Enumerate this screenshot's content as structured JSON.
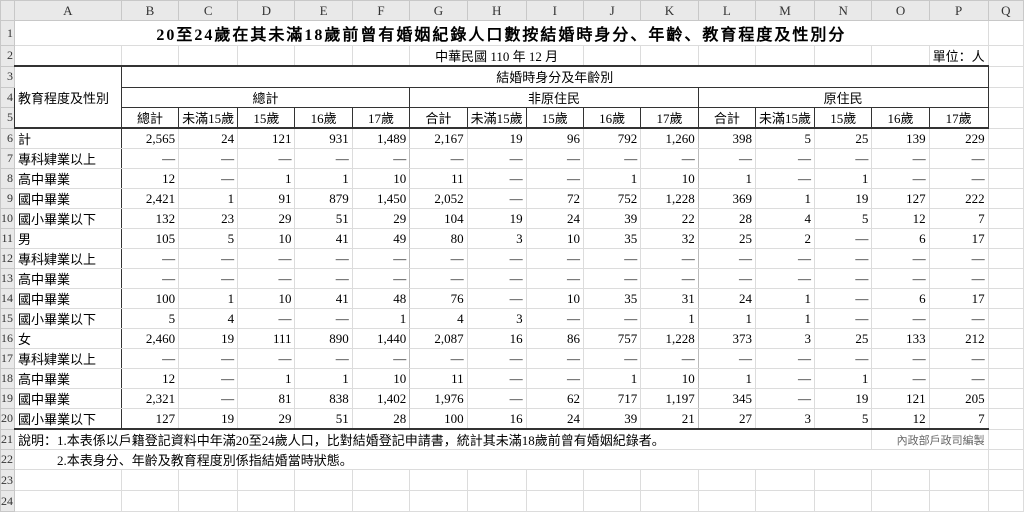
{
  "columns": [
    "A",
    "B",
    "C",
    "D",
    "E",
    "F",
    "G",
    "H",
    "I",
    "J",
    "K",
    "L",
    "M",
    "N",
    "O",
    "P",
    "Q"
  ],
  "row_numbers": [
    "1",
    "2",
    "3",
    "4",
    "5",
    "6",
    "7",
    "8",
    "9",
    "10",
    "11",
    "12",
    "13",
    "14",
    "15",
    "16",
    "17",
    "18",
    "19",
    "20",
    "21",
    "22",
    "23",
    "24"
  ],
  "title": "20至24歲在其未滿18歲前曾有婚姻紀錄人口數按結婚時身分、年齡、教育程度及性別分",
  "date": "中華民國 110 年 12 月",
  "unit": "單位：人",
  "header": {
    "row_label": "教育程度及性別",
    "top": "結婚時身分及年齡別",
    "groups": [
      "總計",
      "非原住民",
      "原住民"
    ],
    "subcols": [
      [
        "總計",
        "未滿15歲",
        "15歲",
        "16歲",
        "17歲"
      ],
      [
        "合計",
        "未滿15歲",
        "15歲",
        "16歲",
        "17歲"
      ],
      [
        "合計",
        "未滿15歲",
        "15歲",
        "16歲",
        "17歲"
      ]
    ]
  },
  "rows": [
    {
      "label": "計",
      "values": [
        "2,565",
        "24",
        "121",
        "931",
        "1,489",
        "2,167",
        "19",
        "96",
        "792",
        "1,260",
        "398",
        "5",
        "25",
        "139",
        "229"
      ]
    },
    {
      "label": "專科肄業以上",
      "values": [
        "—",
        "—",
        "—",
        "—",
        "—",
        "—",
        "—",
        "—",
        "—",
        "—",
        "—",
        "—",
        "—",
        "—",
        "—"
      ]
    },
    {
      "label": "高中畢業",
      "values": [
        "12",
        "—",
        "1",
        "1",
        "10",
        "11",
        "—",
        "—",
        "1",
        "10",
        "1",
        "—",
        "1",
        "—",
        "—"
      ]
    },
    {
      "label": "國中畢業",
      "values": [
        "2,421",
        "1",
        "91",
        "879",
        "1,450",
        "2,052",
        "—",
        "72",
        "752",
        "1,228",
        "369",
        "1",
        "19",
        "127",
        "222"
      ]
    },
    {
      "label": "國小畢業以下",
      "values": [
        "132",
        "23",
        "29",
        "51",
        "29",
        "104",
        "19",
        "24",
        "39",
        "22",
        "28",
        "4",
        "5",
        "12",
        "7"
      ]
    },
    {
      "label": "男",
      "values": [
        "105",
        "5",
        "10",
        "41",
        "49",
        "80",
        "3",
        "10",
        "35",
        "32",
        "25",
        "2",
        "—",
        "6",
        "17"
      ]
    },
    {
      "label": "專科肄業以上",
      "values": [
        "—",
        "—",
        "—",
        "—",
        "—",
        "—",
        "—",
        "—",
        "—",
        "—",
        "—",
        "—",
        "—",
        "—",
        "—"
      ]
    },
    {
      "label": "高中畢業",
      "values": [
        "—",
        "—",
        "—",
        "—",
        "—",
        "—",
        "—",
        "—",
        "—",
        "—",
        "—",
        "—",
        "—",
        "—",
        "—"
      ]
    },
    {
      "label": "國中畢業",
      "values": [
        "100",
        "1",
        "10",
        "41",
        "48",
        "76",
        "—",
        "10",
        "35",
        "31",
        "24",
        "1",
        "—",
        "6",
        "17"
      ]
    },
    {
      "label": "國小畢業以下",
      "values": [
        "5",
        "4",
        "—",
        "—",
        "1",
        "4",
        "3",
        "—",
        "—",
        "1",
        "1",
        "1",
        "—",
        "—",
        "—"
      ]
    },
    {
      "label": "女",
      "values": [
        "2,460",
        "19",
        "111",
        "890",
        "1,440",
        "2,087",
        "16",
        "86",
        "757",
        "1,228",
        "373",
        "3",
        "25",
        "133",
        "212"
      ]
    },
    {
      "label": "專科肄業以上",
      "values": [
        "—",
        "—",
        "—",
        "—",
        "—",
        "—",
        "—",
        "—",
        "—",
        "—",
        "—",
        "—",
        "—",
        "—",
        "—"
      ]
    },
    {
      "label": "高中畢業",
      "values": [
        "12",
        "—",
        "1",
        "1",
        "10",
        "11",
        "—",
        "—",
        "1",
        "10",
        "1",
        "—",
        "1",
        "—",
        "—"
      ]
    },
    {
      "label": "國中畢業",
      "values": [
        "2,321",
        "—",
        "81",
        "838",
        "1,402",
        "1,976",
        "—",
        "62",
        "717",
        "1,197",
        "345",
        "—",
        "19",
        "121",
        "205"
      ]
    },
    {
      "label": "國小畢業以下",
      "values": [
        "127",
        "19",
        "29",
        "51",
        "28",
        "100",
        "16",
        "24",
        "39",
        "21",
        "27",
        "3",
        "5",
        "12",
        "7"
      ]
    }
  ],
  "notes": [
    "說明：1.本表係以戶籍登記資料中年滿20至24歲人口，比對結婚登記申請書，統計其未滿18歲前曾有婚姻紀錄者。",
    "　　　2.本表身分、年齡及教育程度別係指結婚當時狀態。"
  ],
  "credit": "內政部戶政司編製"
}
